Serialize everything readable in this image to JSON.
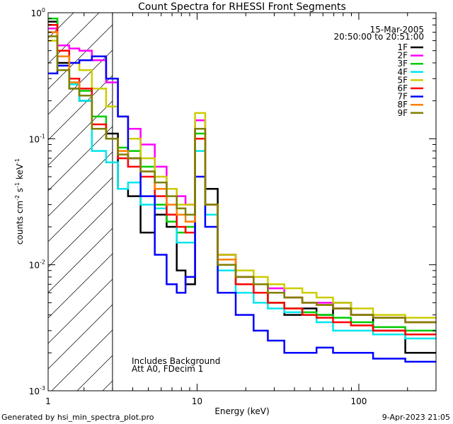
{
  "chart_data": {
    "type": "line",
    "title": "Count Spectra for RHESSI Front Segments",
    "xlabel": "Energy (keV)",
    "ylabel": "counts cm-2 s-1 keV-1",
    "ylabel_parts": {
      "base": "counts cm",
      "exp1": "-2",
      "s": " s",
      "exp2": "-1",
      "kev": " keV",
      "exp3": "-1"
    },
    "xscale": "log",
    "yscale": "log",
    "xlim": [
      1.2,
      300
    ],
    "ylim": [
      0.001,
      1
    ],
    "xticks": [
      {
        "value": 1,
        "label": "1"
      },
      {
        "value": 10,
        "label": "10"
      },
      {
        "value": 100,
        "label": "100"
      }
    ],
    "yticks": [
      {
        "value": 1,
        "base": "10",
        "exp": "0"
      },
      {
        "value": 0.1,
        "base": "10",
        "exp": "-1"
      },
      {
        "value": 0.01,
        "base": "10",
        "exp": "-2"
      },
      {
        "value": 0.001,
        "base": "10",
        "exp": "-3"
      }
    ],
    "hatched_region": {
      "from": 1.2,
      "to": 3.0
    },
    "date": "15-Mar-2005",
    "time_range": "20:50:00 to 20:51:00",
    "annotation_line1": "Includes Background",
    "annotation_line2": "Att A0, FDecim 1",
    "legend_position": "top-right",
    "series": [
      {
        "name": "1F",
        "color": "#000000",
        "values": [
          0.85,
          0.4,
          0.25,
          0.2,
          0.12,
          0.11,
          0.04,
          0.035,
          0.018,
          0.025,
          0.02,
          0.009,
          0.007,
          0.1,
          0.04,
          0.012,
          0.007,
          0.006,
          0.005,
          0.004,
          0.0045,
          0.004,
          0.005,
          0.004,
          0.003,
          0.002
        ]
      },
      {
        "name": "2F",
        "color": "#ff00ff",
        "values": [
          0.75,
          0.55,
          0.52,
          0.5,
          0.42,
          0.28,
          0.15,
          0.12,
          0.09,
          0.06,
          0.04,
          0.035,
          0.03,
          0.14,
          0.025,
          0.012,
          0.008,
          0.007,
          0.0065,
          0.0055,
          0.005,
          0.005,
          0.0045,
          0.004,
          0.0038,
          0.0035
        ]
      },
      {
        "name": "3F",
        "color": "#00cc00",
        "values": [
          0.9,
          0.5,
          0.28,
          0.24,
          0.15,
          0.1,
          0.085,
          0.08,
          0.06,
          0.03,
          0.022,
          0.018,
          0.02,
          0.11,
          0.03,
          0.01,
          0.007,
          0.006,
          0.005,
          0.0045,
          0.0042,
          0.004,
          0.0038,
          0.0035,
          0.0032,
          0.003
        ]
      },
      {
        "name": "4F",
        "color": "#00e5ee",
        "values": [
          0.7,
          0.45,
          0.27,
          0.2,
          0.08,
          0.065,
          0.04,
          0.045,
          0.03,
          0.028,
          0.025,
          0.015,
          0.015,
          0.08,
          0.025,
          0.009,
          0.006,
          0.005,
          0.0045,
          0.0042,
          0.004,
          0.0035,
          0.003,
          0.003,
          0.0028,
          0.0026
        ]
      },
      {
        "name": "5F",
        "color": "#cccc00",
        "values": [
          0.6,
          0.45,
          0.4,
          0.35,
          0.25,
          0.18,
          0.15,
          0.1,
          0.07,
          0.05,
          0.04,
          0.03,
          0.03,
          0.16,
          0.03,
          0.012,
          0.009,
          0.008,
          0.007,
          0.0065,
          0.006,
          0.0055,
          0.005,
          0.0045,
          0.004,
          0.0038
        ]
      },
      {
        "name": "6F",
        "color": "#ff0000",
        "values": [
          0.8,
          0.5,
          0.3,
          0.25,
          0.13,
          0.1,
          0.07,
          0.06,
          0.05,
          0.035,
          0.025,
          0.02,
          0.018,
          0.1,
          0.03,
          0.01,
          0.007,
          0.006,
          0.005,
          0.0045,
          0.004,
          0.0038,
          0.0035,
          0.0033,
          0.003,
          0.0028
        ]
      },
      {
        "name": "7F",
        "color": "#0000ff",
        "values": [
          0.33,
          0.38,
          0.4,
          0.42,
          0.45,
          0.3,
          0.15,
          0.07,
          0.035,
          0.012,
          0.007,
          0.006,
          0.008,
          0.05,
          0.02,
          0.006,
          0.004,
          0.003,
          0.0025,
          0.002,
          0.002,
          0.0022,
          0.002,
          0.002,
          0.0018,
          0.0017
        ]
      },
      {
        "name": "8F",
        "color": "#ff7f00",
        "values": [
          0.7,
          0.45,
          0.28,
          0.22,
          0.12,
          0.1,
          0.08,
          0.07,
          0.055,
          0.04,
          0.03,
          0.025,
          0.022,
          0.12,
          0.03,
          0.011,
          0.008,
          0.007,
          0.006,
          0.0055,
          0.005,
          0.0048,
          0.0045,
          0.004,
          0.0038,
          0.0035
        ]
      },
      {
        "name": "9F",
        "color": "#7f7f00",
        "values": [
          0.65,
          0.35,
          0.25,
          0.22,
          0.12,
          0.1,
          0.075,
          0.07,
          0.055,
          0.045,
          0.035,
          0.028,
          0.025,
          0.12,
          0.03,
          0.01,
          0.008,
          0.007,
          0.006,
          0.0055,
          0.005,
          0.0048,
          0.0045,
          0.004,
          0.0038,
          0.0035
        ]
      }
    ],
    "energies": [
      1.25,
      1.5,
      1.75,
      2.0,
      2.5,
      3.0,
      3.5,
      4.0,
      5.0,
      6.0,
      7.0,
      8.0,
      9.0,
      10.5,
      12.0,
      15.0,
      20.0,
      25.0,
      30.0,
      40.0,
      50.0,
      60.0,
      80.0,
      100.0,
      150.0,
      250.0
    ]
  },
  "footer": {
    "generated_by": "Generated by  hsi_min_spectra_plot.pro",
    "timestamp": "9-Apr-2023 21:05"
  }
}
